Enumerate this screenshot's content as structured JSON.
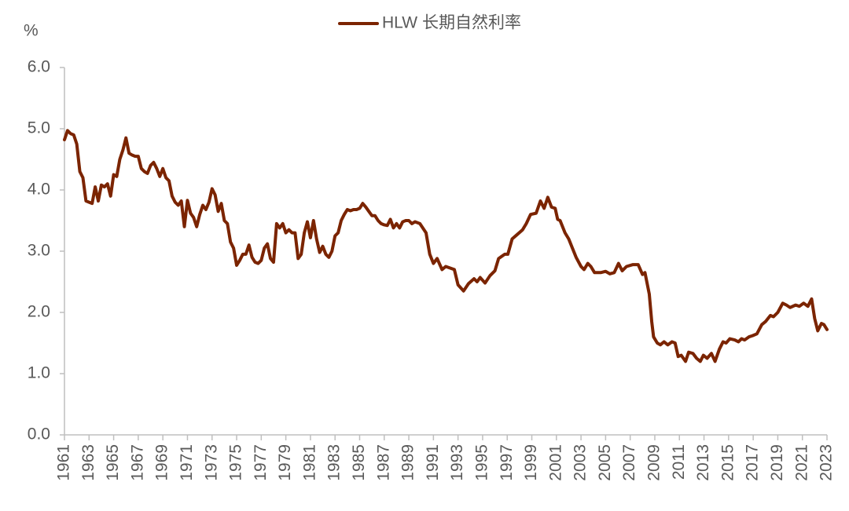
{
  "chart_data": {
    "type": "line",
    "y_unit": "%",
    "x": [
      1961,
      1961.25,
      1961.5,
      1961.75,
      1962,
      1962.25,
      1962.5,
      1962.75,
      1963,
      1963.25,
      1963.5,
      1963.75,
      1964,
      1964.25,
      1964.5,
      1964.75,
      1965,
      1965.25,
      1965.5,
      1965.75,
      1966,
      1966.25,
      1966.5,
      1966.75,
      1967,
      1967.25,
      1967.5,
      1967.75,
      1968,
      1968.25,
      1968.5,
      1968.75,
      1969,
      1969.25,
      1969.5,
      1969.75,
      1970,
      1970.25,
      1970.5,
      1970.75,
      1971,
      1971.25,
      1971.5,
      1971.75,
      1972,
      1972.25,
      1972.5,
      1972.75,
      1973,
      1973.25,
      1973.5,
      1973.75,
      1974,
      1974.25,
      1974.5,
      1974.75,
      1975,
      1975.25,
      1975.5,
      1975.75,
      1976,
      1976.25,
      1976.5,
      1976.75,
      1977,
      1977.25,
      1977.5,
      1977.75,
      1978,
      1978.25,
      1978.5,
      1978.75,
      1979,
      1979.25,
      1979.5,
      1979.75,
      1980,
      1980.25,
      1980.5,
      1980.75,
      1981,
      1981.25,
      1981.5,
      1981.75,
      1982,
      1982.25,
      1982.5,
      1982.75,
      1983,
      1983.25,
      1983.5,
      1983.75,
      1984,
      1984.25,
      1984.5,
      1984.75,
      1985,
      1985.25,
      1985.5,
      1985.75,
      1986,
      1986.25,
      1986.5,
      1986.75,
      1987,
      1987.25,
      1987.5,
      1987.75,
      1988,
      1988.25,
      1988.5,
      1988.75,
      1989,
      1989.25,
      1989.5,
      1989.9,
      1990.4,
      1990.7,
      1991,
      1991.3,
      1991.7,
      1992,
      1992.7,
      1993,
      1993.45,
      1993.85,
      1994.3,
      1994.55,
      1994.8,
      1995.2,
      1995.6,
      1996,
      1996.3,
      1996.8,
      1997.05,
      1997.4,
      1997.8,
      1998.25,
      1998.55,
      1998.9,
      1999.35,
      1999.7,
      2000,
      2000.3,
      2000.6,
      2000.9,
      2001.1,
      2001.3,
      2001.7,
      2002,
      2002.3,
      2002.6,
      2003,
      2003.25,
      2003.55,
      2003.8,
      2004.1,
      2004.6,
      2005,
      2005.35,
      2005.7,
      2006.05,
      2006.35,
      2006.7,
      2007.2,
      2007.65,
      2008,
      2008.2,
      2008.55,
      2008.75,
      2008.9,
      2009.2,
      2009.45,
      2009.75,
      2010.05,
      2010.4,
      2010.65,
      2010.9,
      2011.15,
      2011.5,
      2011.75,
      2012.1,
      2012.4,
      2012.7,
      2012.95,
      2013.25,
      2013.6,
      2013.9,
      2014.25,
      2014.55,
      2014.8,
      2015.1,
      2015.5,
      2015.8,
      2016.05,
      2016.3,
      2016.65,
      2016.95,
      2017.3,
      2017.7,
      2018,
      2018.4,
      2018.65,
      2019,
      2019.4,
      2019.7,
      2020,
      2020.45,
      2020.75,
      2021.1,
      2021.45,
      2021.75,
      2022,
      2022.25,
      2022.55,
      2022.75,
      2023
    ],
    "series": [
      {
        "name": "HLW 长期自然利率",
        "color": "#7b2400",
        "values": [
          4.82,
          4.97,
          4.92,
          4.9,
          4.75,
          4.3,
          4.2,
          3.82,
          3.8,
          3.78,
          4.05,
          3.82,
          4.08,
          4.05,
          4.1,
          3.9,
          4.25,
          4.22,
          4.5,
          4.65,
          4.85,
          4.6,
          4.57,
          4.55,
          4.55,
          4.35,
          4.3,
          4.27,
          4.4,
          4.45,
          4.35,
          4.22,
          4.35,
          4.2,
          4.15,
          3.9,
          3.8,
          3.75,
          3.82,
          3.4,
          3.83,
          3.62,
          3.55,
          3.4,
          3.6,
          3.75,
          3.68,
          3.8,
          4.02,
          3.92,
          3.65,
          3.78,
          3.5,
          3.45,
          3.15,
          3.05,
          2.77,
          2.85,
          2.95,
          2.95,
          3.1,
          2.9,
          2.82,
          2.8,
          2.85,
          3.05,
          3.12,
          2.88,
          2.82,
          3.45,
          3.38,
          3.45,
          3.3,
          3.35,
          3.3,
          3.3,
          2.88,
          2.95,
          3.3,
          3.48,
          3.22,
          3.5,
          3.2,
          2.98,
          3.08,
          2.95,
          2.9,
          3.0,
          3.25,
          3.3,
          3.5,
          3.6,
          3.68,
          3.66,
          3.68,
          3.68,
          3.7,
          3.78,
          3.72,
          3.65,
          3.58,
          3.58,
          3.5,
          3.45,
          3.43,
          3.42,
          3.52,
          3.38,
          3.45,
          3.38,
          3.48,
          3.5,
          3.5,
          3.45,
          3.48,
          3.45,
          3.3,
          2.95,
          2.8,
          2.88,
          2.7,
          2.75,
          2.7,
          2.45,
          2.35,
          2.47,
          2.55,
          2.5,
          2.57,
          2.48,
          2.6,
          2.68,
          2.88,
          2.95,
          2.95,
          3.2,
          3.27,
          3.35,
          3.45,
          3.6,
          3.62,
          3.82,
          3.7,
          3.88,
          3.72,
          3.7,
          3.52,
          3.5,
          3.3,
          3.2,
          3.05,
          2.9,
          2.75,
          2.7,
          2.8,
          2.75,
          2.65,
          2.65,
          2.67,
          2.63,
          2.65,
          2.8,
          2.68,
          2.75,
          2.78,
          2.78,
          2.62,
          2.65,
          2.3,
          1.85,
          1.6,
          1.5,
          1.47,
          1.52,
          1.47,
          1.52,
          1.5,
          1.28,
          1.3,
          1.2,
          1.35,
          1.33,
          1.25,
          1.2,
          1.3,
          1.25,
          1.33,
          1.2,
          1.4,
          1.52,
          1.5,
          1.57,
          1.55,
          1.52,
          1.57,
          1.55,
          1.6,
          1.62,
          1.65,
          1.8,
          1.85,
          1.95,
          1.93,
          2.0,
          2.15,
          2.12,
          2.08,
          2.12,
          2.1,
          2.15,
          2.1,
          2.22,
          1.9,
          1.7,
          1.82,
          1.8,
          1.72
        ]
      }
    ],
    "xlim": [
      1961,
      2023
    ],
    "xticks": [
      1961,
      1963,
      1965,
      1967,
      1969,
      1971,
      1973,
      1975,
      1977,
      1979,
      1981,
      1983,
      1985,
      1987,
      1989,
      1991,
      1993,
      1995,
      1997,
      1999,
      2001,
      2003,
      2005,
      2007,
      2009,
      2011,
      2013,
      2015,
      2017,
      2019,
      2021,
      2023
    ],
    "ylim": [
      0,
      6
    ],
    "yticks": [
      {
        "value": 0,
        "label": "0.0"
      },
      {
        "value": 1,
        "label": "1.0"
      },
      {
        "value": 2,
        "label": "2.0"
      },
      {
        "value": 3,
        "label": "3.0"
      },
      {
        "value": 4,
        "label": "4.0"
      },
      {
        "value": 5,
        "label": "5.0"
      },
      {
        "value": 6,
        "label": "6.0"
      }
    ],
    "grid": false,
    "legend": "top"
  }
}
